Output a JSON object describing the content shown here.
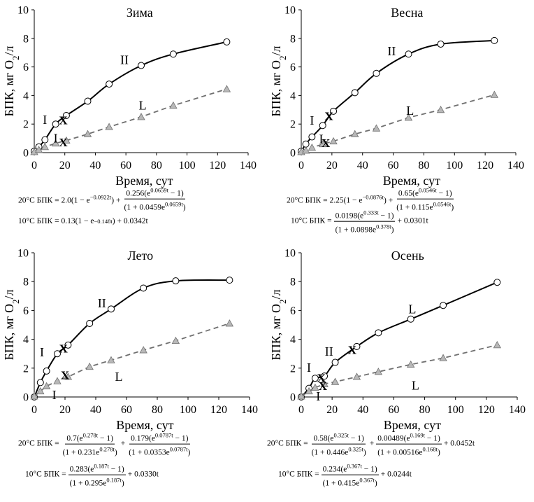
{
  "chart_data": [
    {
      "type": "line",
      "title": "Зима",
      "xlabel": "Время, сут",
      "ylabel": "БПК, мг O2/л",
      "xlim": [
        0,
        140
      ],
      "ylim": [
        0,
        10
      ],
      "xticks": [
        0,
        20,
        40,
        60,
        80,
        100,
        120,
        140
      ],
      "yticks": [
        0,
        2,
        4,
        6,
        8,
        10
      ],
      "series": [
        {
          "name": "20°C",
          "marker": "circle",
          "line": "solid",
          "x": [
            0,
            3,
            7,
            14,
            21,
            35,
            49,
            70,
            91,
            126
          ],
          "y": [
            0.1,
            0.4,
            0.9,
            2.0,
            2.6,
            3.6,
            4.8,
            6.1,
            6.9,
            7.75
          ]
        },
        {
          "name": "10°C",
          "marker": "triangle",
          "line": "dashed",
          "x": [
            0,
            3,
            7,
            14,
            21,
            35,
            49,
            70,
            91,
            126
          ],
          "y": [
            0.05,
            0.2,
            0.4,
            0.65,
            0.85,
            1.3,
            1.8,
            2.5,
            3.3,
            4.45
          ]
        }
      ],
      "transitions": [
        {
          "x": 19,
          "y": 2.3
        },
        {
          "x": 19,
          "y": 0.75
        }
      ],
      "annotations": [
        {
          "text": "I",
          "x": 7,
          "y": 2.3
        },
        {
          "text": "I",
          "x": 14,
          "y": 1.0
        },
        {
          "text": "II",
          "x": 59,
          "y": 6.5
        },
        {
          "text": "L",
          "x": 71,
          "y": 3.3
        }
      ],
      "formulas": {
        "t20": {
          "prefix": "20°C БПК = 2.0(1 − e",
          "prefix_exp": "−0.0922t",
          "prefix_tail": ") +",
          "num_a": "0.256(e",
          "num_exp": "0.0659t",
          "num_b": " − 1)",
          "den_a": "(1 + 0.0459e",
          "den_exp": "0.0659t",
          "den_b": ")",
          "tail": ""
        },
        "t10": {
          "text_a": "10°C БПК = 0.13(1 − e",
          "exp": "−0.148t",
          "text_b": ") + 0.0342t"
        }
      }
    },
    {
      "type": "line",
      "title": "Весна",
      "xlabel": "Время, сут",
      "ylabel": "БПК, мг O2/л",
      "xlim": [
        0,
        140
      ],
      "ylim": [
        0,
        10
      ],
      "xticks": [
        0,
        20,
        40,
        60,
        80,
        100,
        120,
        140
      ],
      "yticks": [
        0,
        2,
        4,
        6,
        8,
        10
      ],
      "series": [
        {
          "name": "20°C",
          "marker": "circle",
          "line": "solid",
          "x": [
            0,
            3,
            7,
            14,
            21,
            35,
            49,
            70,
            91,
            126
          ],
          "y": [
            0.1,
            0.6,
            1.1,
            1.9,
            2.9,
            4.2,
            5.55,
            6.9,
            7.6,
            7.85
          ]
        },
        {
          "name": "10°C",
          "marker": "triangle",
          "line": "dashed",
          "x": [
            0,
            3,
            7,
            14,
            21,
            35,
            49,
            70,
            91,
            126
          ],
          "y": [
            0.05,
            0.15,
            0.35,
            0.6,
            0.8,
            1.3,
            1.7,
            2.45,
            3.0,
            4.05
          ]
        }
      ],
      "transitions": [
        {
          "x": 18,
          "y": 2.6
        },
        {
          "x": 16,
          "y": 0.7
        }
      ],
      "annotations": [
        {
          "text": "I",
          "x": 7,
          "y": 2.25
        },
        {
          "text": "I",
          "x": 13,
          "y": 0.95
        },
        {
          "text": "II",
          "x": 59,
          "y": 7.1
        },
        {
          "text": "L",
          "x": 71,
          "y": 2.95
        }
      ],
      "formulas": {
        "t20": {
          "prefix": "20°C БПК = 2.25(1 − e",
          "prefix_exp": "−0.0876t",
          "prefix_tail": ") +",
          "num_a": "0.65(e",
          "num_exp": "0.0546t",
          "num_b": " − 1)",
          "den_a": "(1 + 0.115e",
          "den_exp": "0.0546t",
          "den_b": ")",
          "tail": ""
        },
        "t10": {
          "lead": "10°C БПК =",
          "num_a": "0.0198(e",
          "num_exp": "0.333t",
          "num_b": " − 1)",
          "den_a": "(1 + 0.0898e",
          "den_exp": "0.378t",
          "den_b": ")",
          "tail": "+ 0.0301t"
        }
      }
    },
    {
      "type": "line",
      "title": "Лето",
      "xlabel": "Время, сут",
      "ylabel": "БПК, мг O2/л",
      "xlim": [
        0,
        140
      ],
      "ylim": [
        0,
        10
      ],
      "xticks": [
        0,
        20,
        40,
        60,
        80,
        100,
        120,
        140
      ],
      "yticks": [
        0,
        2,
        4,
        6,
        8,
        10
      ],
      "series": [
        {
          "name": "20°C",
          "marker": "circle",
          "line": "solid",
          "x": [
            0,
            4,
            8,
            15,
            22,
            36,
            50,
            71,
            92,
            127
          ],
          "y": [
            0.0,
            1.0,
            1.8,
            3.0,
            3.6,
            5.1,
            6.1,
            7.55,
            8.05,
            8.1
          ]
        },
        {
          "name": "10°C",
          "marker": "triangle",
          "line": "dashed",
          "x": [
            0,
            4,
            8,
            15,
            22,
            36,
            50,
            71,
            92,
            127
          ],
          "y": [
            0.05,
            0.4,
            0.75,
            1.1,
            1.4,
            2.1,
            2.55,
            3.25,
            3.9,
            5.1
          ]
        }
      ],
      "transitions": [
        {
          "x": 19,
          "y": 3.4
        },
        {
          "x": 20,
          "y": 1.55
        }
      ],
      "annotations": [
        {
          "text": "I",
          "x": 5,
          "y": 3.1
        },
        {
          "text": "I",
          "x": 13,
          "y": 0.15
        },
        {
          "text": "II",
          "x": 44,
          "y": 6.5
        },
        {
          "text": "L",
          "x": 55,
          "y": 1.4
        }
      ],
      "formulas": {
        "t20": {
          "lead": "20°C БПК =",
          "num_a": "0.7(e",
          "num_exp": "0.278t",
          "num_b": " − 1)",
          "den_a": "(1 + 0.231e",
          "den_exp": "0.278t",
          "den_b": ")",
          "num2_a": "0.179(e",
          "num2_exp": "0.0787t",
          "num2_b": " − 1)",
          "den2_a": "(1 + 0.0353e",
          "den2_exp": "0.0787t",
          "den2_b": ")",
          "tail": ""
        },
        "t10": {
          "lead": "10°C БПК =",
          "num_a": "0.283(e",
          "num_exp": "0.187t",
          "num_b": " − 1)",
          "den_a": "(1 + 0.295e",
          "den_exp": "0.187t",
          "den_b": ")",
          "tail": "+ 0.0330t"
        }
      }
    },
    {
      "type": "line",
      "title": "Осень",
      "xlabel": "Время, сут",
      "ylabel": "БПК, мг O2/л",
      "xlim": [
        0,
        140
      ],
      "ylim": [
        0,
        10
      ],
      "xticks": [
        0,
        20,
        40,
        60,
        80,
        100,
        120,
        140
      ],
      "yticks": [
        0,
        2,
        4,
        6,
        8,
        10
      ],
      "series": [
        {
          "name": "20°C",
          "marker": "circle",
          "line": "solid",
          "x": [
            0,
            5,
            9,
            15,
            22,
            36,
            50,
            71,
            92,
            127
          ],
          "y": [
            0.0,
            0.6,
            1.3,
            1.45,
            2.4,
            3.5,
            4.45,
            5.4,
            6.35,
            7.95
          ]
        },
        {
          "name": "10°C",
          "marker": "triangle",
          "line": "dashed",
          "x": [
            0,
            5,
            9,
            15,
            22,
            36,
            50,
            71,
            92,
            127
          ],
          "y": [
            0.05,
            0.4,
            0.65,
            0.9,
            1.05,
            1.4,
            1.75,
            2.25,
            2.7,
            3.6
          ]
        }
      ],
      "transitions": [
        {
          "x": 33,
          "y": 3.3
        },
        {
          "x": 13,
          "y": 1.35
        },
        {
          "x": 14,
          "y": 0.8
        }
      ],
      "annotations": [
        {
          "text": "I",
          "x": 5,
          "y": 2.05
        },
        {
          "text": "I",
          "x": 11,
          "y": 0.05
        },
        {
          "text": "II",
          "x": 18,
          "y": 3.15
        },
        {
          "text": "L",
          "x": 72,
          "y": 6.1
        },
        {
          "text": "L",
          "x": 74,
          "y": 0.8
        }
      ],
      "formulas": {
        "t20": {
          "lead": "20°C БПК =",
          "num_a": "0.58(e",
          "num_exp": "0.325t",
          "num_b": " − 1)",
          "den_a": "(1 + 0.446e",
          "den_exp": "0.325t",
          "den_b": ")",
          "num2_a": "0.00489(e",
          "num2_exp": "0.169t",
          "num2_b": " − 1)",
          "den2_a": "(1 + 0.00516e",
          "den2_exp": "0.168t",
          "den2_b": ")",
          "tail": "+ 0.0452t"
        },
        "t10": {
          "lead": "10°C БПК =",
          "num_a": "0.234(e",
          "num_exp": "0.367t",
          "num_b": " − 1)",
          "den_a": "(1 + 0.415e",
          "den_exp": "0.367t",
          "den_b": ")",
          "tail": "+ 0.0244t"
        }
      }
    }
  ],
  "colors": {
    "axis": "#000000",
    "curve_20": "#000000",
    "curve_10": "#707070",
    "circle_fill": "#ffffff",
    "triangle_fill": "#b8b8b8",
    "triangle_stroke": "#707070"
  }
}
